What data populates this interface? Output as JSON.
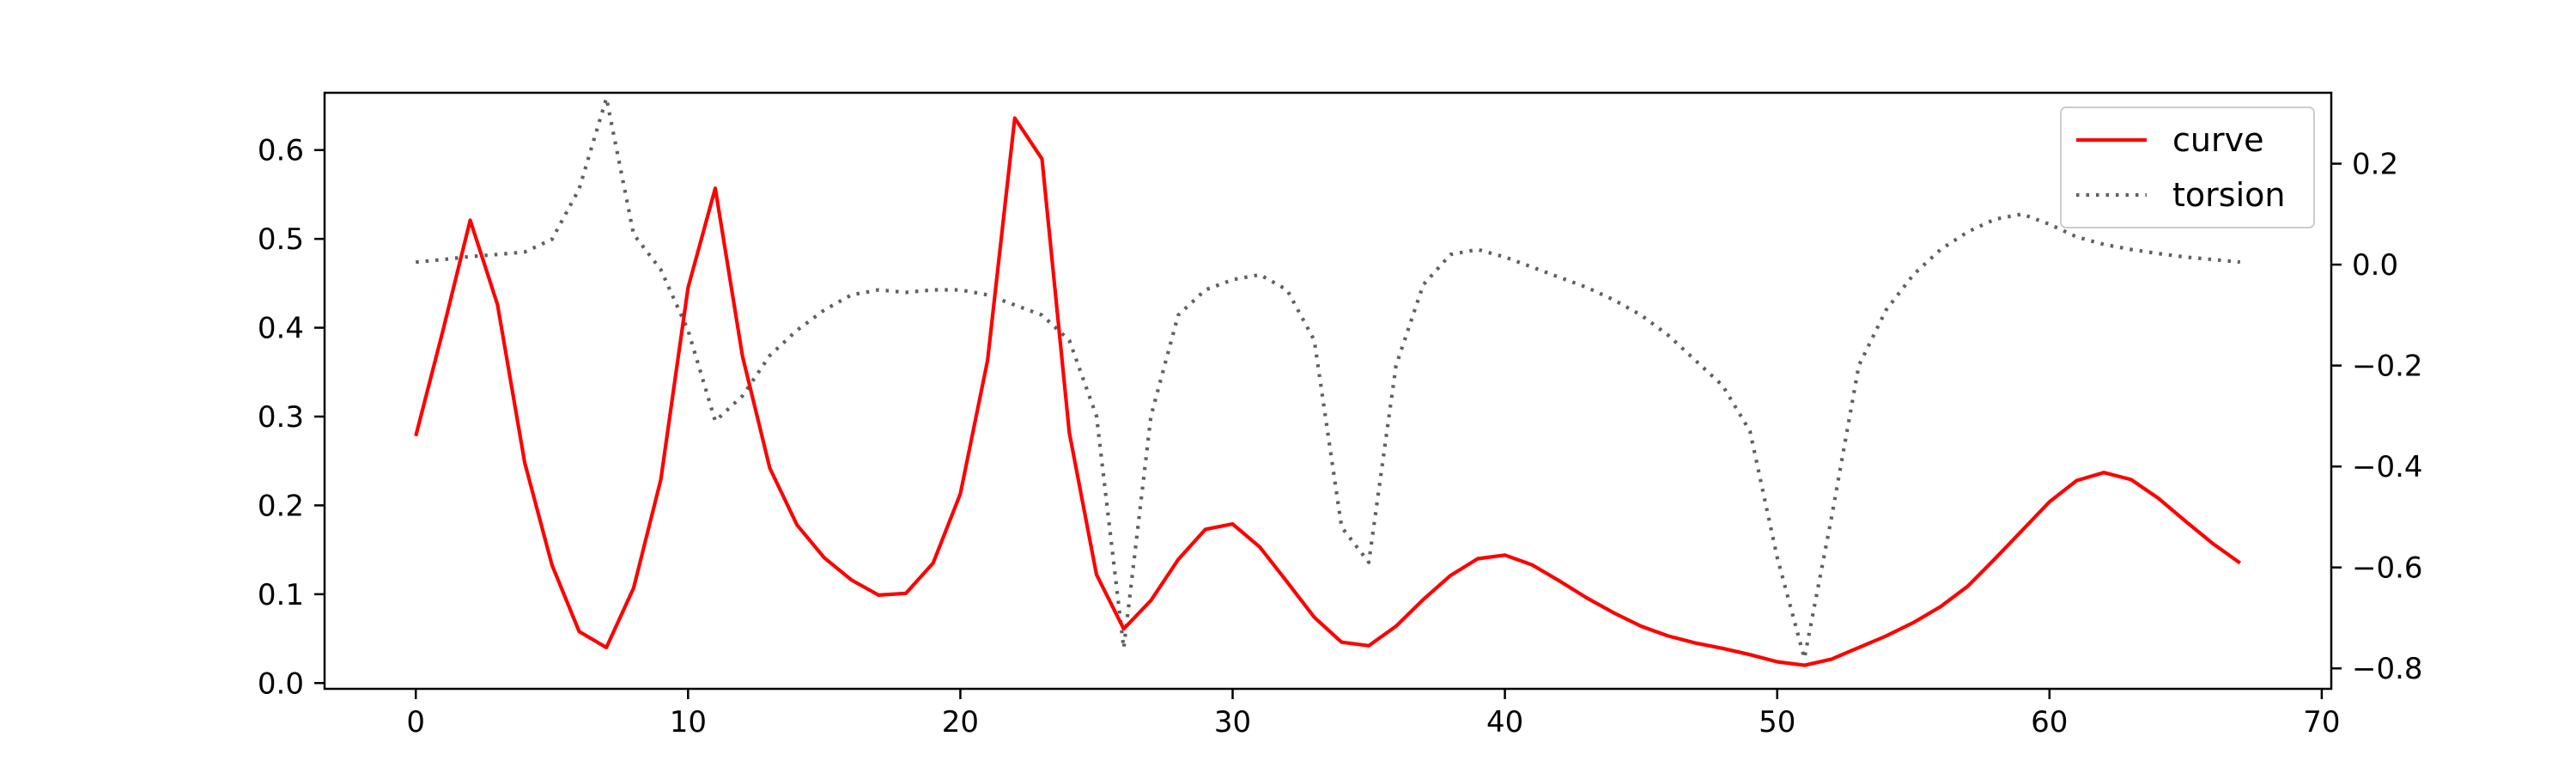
{
  "chart_data": {
    "type": "line",
    "title": "",
    "xlabel": "",
    "ylabel": "",
    "y2label": "",
    "xlim": [
      -3.35,
      70.35
    ],
    "ylim": [
      -0.0065,
      0.6645
    ],
    "y2lim": [
      -0.8405,
      0.3405
    ],
    "grid": false,
    "legend": {
      "placement": "top-right",
      "entries": [
        "curve",
        "torsion"
      ]
    },
    "x_ticks": [
      0,
      10,
      20,
      30,
      40,
      50,
      60,
      70
    ],
    "x_tick_labels": [
      "0",
      "10",
      "20",
      "30",
      "40",
      "50",
      "60",
      "70"
    ],
    "y_ticks": [
      0.0,
      0.1,
      0.2,
      0.3,
      0.4,
      0.5,
      0.6
    ],
    "y_tick_labels": [
      "0.0",
      "0.1",
      "0.2",
      "0.3",
      "0.4",
      "0.5",
      "0.6"
    ],
    "y2_ticks": [
      0.2,
      0.0,
      -0.2,
      -0.4,
      -0.6,
      -0.8
    ],
    "y2_tick_labels": [
      "0.2",
      "0.0",
      "−0.2",
      "−0.4",
      "−0.6",
      "−0.8"
    ],
    "x": [
      0,
      1,
      2,
      3,
      4,
      5,
      6,
      7,
      8,
      9,
      10,
      11,
      12,
      13,
      14,
      15,
      16,
      17,
      18,
      19,
      20,
      21,
      22,
      23,
      24,
      25,
      26,
      27,
      28,
      29,
      30,
      31,
      32,
      33,
      34,
      35,
      36,
      37,
      38,
      39,
      40,
      41,
      42,
      43,
      44,
      45,
      46,
      47,
      48,
      49,
      50,
      51,
      52,
      53,
      54,
      55,
      56,
      57,
      58,
      59,
      60,
      61,
      62,
      63,
      64,
      65,
      66,
      67
    ],
    "series": [
      {
        "name": "curve",
        "axis": "left",
        "color": "#ff0000",
        "style": "solid",
        "values": [
          0.278,
          0.397,
          0.521,
          0.426,
          0.248,
          0.133,
          0.058,
          0.04,
          0.107,
          0.229,
          0.445,
          0.557,
          0.368,
          0.242,
          0.178,
          0.141,
          0.116,
          0.099,
          0.101,
          0.135,
          0.213,
          0.363,
          0.636,
          0.59,
          0.282,
          0.122,
          0.061,
          0.093,
          0.139,
          0.173,
          0.179,
          0.153,
          0.114,
          0.074,
          0.046,
          0.042,
          0.064,
          0.094,
          0.121,
          0.14,
          0.144,
          0.133,
          0.115,
          0.096,
          0.079,
          0.064,
          0.053,
          0.045,
          0.039,
          0.032,
          0.024,
          0.02,
          0.027,
          0.04,
          0.053,
          0.068,
          0.086,
          0.109,
          0.14,
          0.172,
          0.204,
          0.228,
          0.237,
          0.229,
          0.208,
          0.182,
          0.157,
          0.135
        ]
      },
      {
        "name": "torsion",
        "axis": "right",
        "color": "#606060",
        "style": "dotted",
        "values": [
          0.005,
          0.01,
          0.016,
          0.02,
          0.025,
          0.05,
          0.15,
          0.33,
          0.06,
          -0.01,
          -0.13,
          -0.31,
          -0.26,
          -0.18,
          -0.13,
          -0.09,
          -0.06,
          -0.05,
          -0.055,
          -0.05,
          -0.05,
          -0.06,
          -0.08,
          -0.1,
          -0.15,
          -0.3,
          -0.76,
          -0.3,
          -0.1,
          -0.05,
          -0.03,
          -0.02,
          -0.05,
          -0.15,
          -0.52,
          -0.59,
          -0.2,
          -0.04,
          0.02,
          0.03,
          0.015,
          -0.005,
          -0.025,
          -0.045,
          -0.07,
          -0.1,
          -0.14,
          -0.19,
          -0.24,
          -0.33,
          -0.58,
          -0.78,
          -0.5,
          -0.2,
          -0.09,
          -0.02,
          0.03,
          0.065,
          0.09,
          0.1,
          0.08,
          0.055,
          0.04,
          0.03,
          0.022,
          0.015,
          0.01,
          0.005
        ]
      }
    ]
  }
}
